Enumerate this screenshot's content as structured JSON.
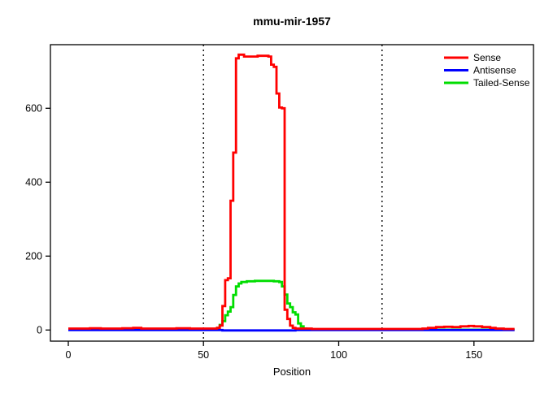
{
  "chart_data": {
    "type": "line",
    "title": "mmu-mir-1957",
    "xlabel": "Position",
    "ylabel": "",
    "grid": false,
    "legend_position": "top-right",
    "x_ticks": [
      0,
      50,
      100,
      150
    ],
    "y_ticks": [
      0,
      200,
      400,
      600
    ],
    "xlim": [
      -6.6,
      172
    ],
    "ylim": [
      -30,
      772
    ],
    "vlines": [
      50,
      116
    ],
    "vline_style": "dotted",
    "axis_color": "#000000",
    "series": [
      {
        "name": "Sense",
        "color": "#FF0000",
        "points": [
          [
            0,
            4
          ],
          [
            5,
            4
          ],
          [
            8,
            5
          ],
          [
            12,
            4
          ],
          [
            20,
            5
          ],
          [
            24,
            6
          ],
          [
            27,
            4
          ],
          [
            35,
            4
          ],
          [
            40,
            5
          ],
          [
            45,
            4
          ],
          [
            50,
            4
          ],
          [
            54,
            4
          ],
          [
            55,
            6
          ],
          [
            56,
            12
          ],
          [
            57,
            65
          ],
          [
            58,
            135
          ],
          [
            59,
            140
          ],
          [
            60,
            350
          ],
          [
            61,
            480
          ],
          [
            62,
            735
          ],
          [
            63,
            745
          ],
          [
            65,
            740
          ],
          [
            70,
            742
          ],
          [
            74,
            740
          ],
          [
            75,
            718
          ],
          [
            76,
            712
          ],
          [
            77,
            640
          ],
          [
            78,
            602
          ],
          [
            79,
            600
          ],
          [
            80,
            55
          ],
          [
            81,
            30
          ],
          [
            82,
            12
          ],
          [
            83,
            6
          ],
          [
            84,
            4
          ],
          [
            90,
            3
          ],
          [
            100,
            3
          ],
          [
            110,
            3
          ],
          [
            120,
            3
          ],
          [
            128,
            3
          ],
          [
            131,
            4
          ],
          [
            133,
            6
          ],
          [
            136,
            8
          ],
          [
            139,
            9
          ],
          [
            142,
            8
          ],
          [
            145,
            10
          ],
          [
            148,
            11
          ],
          [
            150,
            10
          ],
          [
            153,
            8
          ],
          [
            156,
            6
          ],
          [
            158,
            4
          ],
          [
            161,
            3
          ],
          [
            165,
            3
          ]
        ]
      },
      {
        "name": "Antisense",
        "color": "#0000FF",
        "points": [
          [
            0,
            0
          ],
          [
            30,
            0
          ],
          [
            55,
            0
          ],
          [
            57,
            -1
          ],
          [
            80,
            -1
          ],
          [
            84,
            0
          ],
          [
            120,
            0
          ],
          [
            165,
            0
          ]
        ]
      },
      {
        "name": "Tailed-Sense",
        "color": "#00DD00",
        "points": [
          [
            0,
            1
          ],
          [
            10,
            1
          ],
          [
            20,
            1
          ],
          [
            30,
            1
          ],
          [
            40,
            1
          ],
          [
            50,
            1
          ],
          [
            53,
            2
          ],
          [
            55,
            6
          ],
          [
            56,
            14
          ],
          [
            57,
            24
          ],
          [
            58,
            40
          ],
          [
            59,
            50
          ],
          [
            60,
            62
          ],
          [
            61,
            95
          ],
          [
            62,
            118
          ],
          [
            63,
            126
          ],
          [
            64,
            130
          ],
          [
            66,
            132
          ],
          [
            69,
            133
          ],
          [
            73,
            133
          ],
          [
            76,
            132
          ],
          [
            78,
            130
          ],
          [
            79,
            118
          ],
          [
            80,
            96
          ],
          [
            81,
            72
          ],
          [
            82,
            62
          ],
          [
            83,
            48
          ],
          [
            84,
            42
          ],
          [
            85,
            18
          ],
          [
            86,
            10
          ],
          [
            87,
            4
          ],
          [
            88,
            1
          ],
          [
            95,
            1
          ],
          [
            110,
            1
          ],
          [
            130,
            1
          ],
          [
            150,
            1
          ],
          [
            165,
            1
          ]
        ]
      }
    ]
  }
}
